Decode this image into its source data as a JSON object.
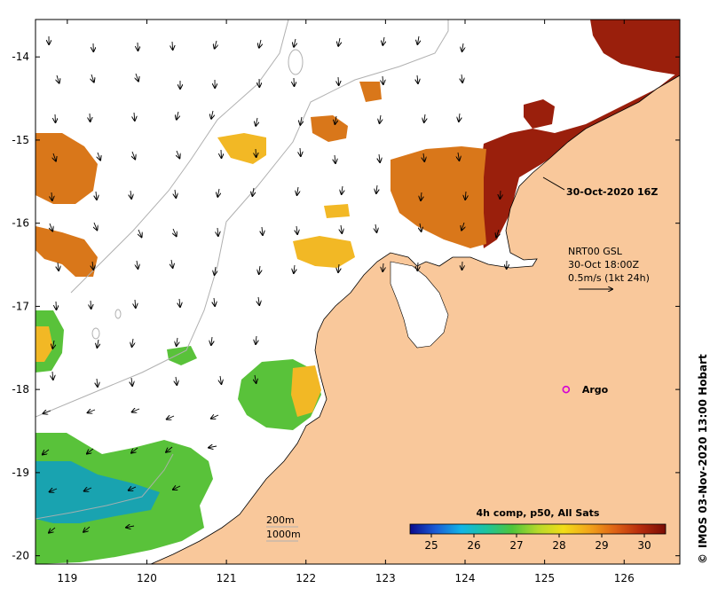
{
  "map": {
    "projection": "lon-lat",
    "lon_range": [
      118.6,
      126.7
    ],
    "lat_range": [
      -20.1,
      -13.55
    ],
    "lon_ticks": [
      {
        "value": 119,
        "label": "119"
      },
      {
        "value": 120,
        "label": "120"
      },
      {
        "value": 121,
        "label": "121"
      },
      {
        "value": 122,
        "label": "122"
      },
      {
        "value": 123,
        "label": "123"
      },
      {
        "value": 124,
        "label": "124"
      },
      {
        "value": 125,
        "label": "125"
      },
      {
        "value": 126,
        "label": "126"
      }
    ],
    "lat_ticks": [
      {
        "value": -14,
        "label": "-14"
      },
      {
        "value": -15,
        "label": "-15"
      },
      {
        "value": -16,
        "label": "-16"
      },
      {
        "value": -17,
        "label": "-17"
      },
      {
        "value": -18,
        "label": "-18"
      },
      {
        "value": -19,
        "label": "-19"
      },
      {
        "value": -20,
        "label": "-20"
      }
    ],
    "colors": {
      "land": "#f9c89b",
      "frame": "#000000",
      "bathymetry": "#b0b0b0",
      "argo": "#d400d4",
      "warm": "#d9771a",
      "hot": "#9a1f0c",
      "mid": "#f2b825",
      "cool": "#59c23a",
      "cold": "#19a3b0"
    }
  },
  "annotations": {
    "timestamp": "30-Oct-2020 16Z",
    "current_source": "NRT00 GSL",
    "current_time": "30-Oct 18:00Z",
    "current_scale": "0.5m/s (1kt 24h)",
    "argo_label": "Argo",
    "isobath_200": "200m",
    "isobath_1000": "1000m",
    "credit": "IMOS 03-Nov-2020 13:00 Hobart",
    "credit_symbol": "©"
  },
  "colorbar": {
    "title": "4h comp, p50, All Sats",
    "range": [
      24.5,
      30.5
    ],
    "ticks": [
      {
        "value": 25,
        "label": "25"
      },
      {
        "value": 26,
        "label": "26"
      },
      {
        "value": 27,
        "label": "27"
      },
      {
        "value": 28,
        "label": "28"
      },
      {
        "value": 29,
        "label": "29"
      },
      {
        "value": 30,
        "label": "30"
      }
    ],
    "stops": [
      "#0a0a8c",
      "#1b5cd6",
      "#13b5e6",
      "#1ec49b",
      "#4fc53a",
      "#b6d92b",
      "#f2dd18",
      "#f2a51a",
      "#df6416",
      "#b72c0d",
      "#7a0d06"
    ]
  },
  "argo": {
    "lon": 125.27,
    "lat": -18.0
  }
}
